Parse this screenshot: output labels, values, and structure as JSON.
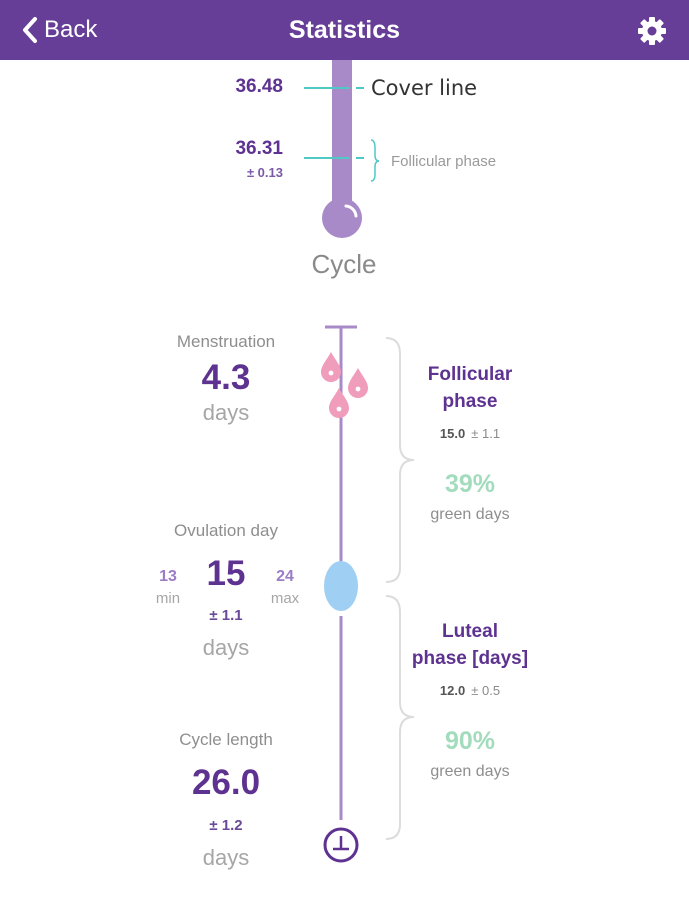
{
  "header": {
    "back_label": "Back",
    "title": "Statistics"
  },
  "thermometer": {
    "cover_line_value": "36.48",
    "cover_line_label": "Cover line",
    "follicular_value": "36.31",
    "follicular_dev": "± 0.13",
    "follicular_label": "Follicular phase",
    "caption": "Cycle"
  },
  "menstruation": {
    "label": "Menstruation",
    "value": "4.3",
    "unit": "days"
  },
  "ovulation": {
    "label": "Ovulation day",
    "value": "15",
    "min_value": "13",
    "min_label": "min",
    "max_value": "24",
    "max_label": "max",
    "dev": "± 1.1",
    "unit": "days"
  },
  "cycle_length": {
    "label": "Cycle length",
    "value": "26.0",
    "dev": "± 1.2",
    "unit": "days"
  },
  "follicular_phase": {
    "title_line1": "Follicular",
    "title_line2": "phase",
    "mean": "15.0",
    "dev": "± 1.1",
    "green_pct": "39%",
    "green_label": "green days"
  },
  "luteal_phase": {
    "title_line1": "Luteal",
    "title_line2": "phase [days]",
    "mean": "12.0",
    "dev": "± 0.5",
    "green_pct": "90%",
    "green_label": "green days"
  },
  "colors": {
    "header_bg": "#663e97",
    "accent_purple": "#5e3290",
    "thermo_lilac": "#a88ac9",
    "teal": "#4fc9c4",
    "drop_pink": "#f09cbb",
    "ovulation_blue": "#9fd0f3",
    "green_text": "#a3dcbc"
  },
  "icons": {
    "back": "chevron-left-icon",
    "settings": "gear-icon",
    "drops": "blood-drop-icon",
    "ovulation": "egg-icon",
    "cycle_end": "cycle-end-icon"
  }
}
